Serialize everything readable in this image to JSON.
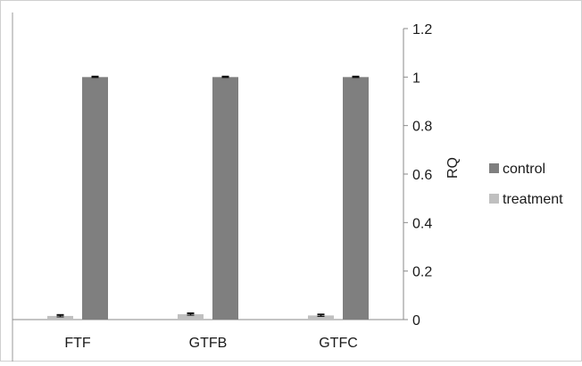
{
  "chart_data": {
    "type": "bar",
    "categories": [
      "FTF",
      "GTFB",
      "GTFC"
    ],
    "series": [
      {
        "name": "treatment",
        "values": [
          0.015,
          0.022,
          0.017
        ],
        "errors": [
          0.004,
          0.004,
          0.004
        ],
        "color": "#c0c0c0"
      },
      {
        "name": "control",
        "values": [
          1.0,
          1.0,
          1.0
        ],
        "errors": [
          0.002,
          0.002,
          0.002
        ],
        "color": "#7f7f7f"
      }
    ],
    "ylabel": "RQ",
    "ylim": [
      0,
      1.2
    ],
    "yticks": [
      "0",
      "0.2",
      "0.4",
      "0.6",
      "0.8",
      "1",
      "1.2"
    ],
    "y_axis_side": "right",
    "grid": false,
    "legend_position": "right",
    "legend": [
      "control",
      "treatment"
    ]
  }
}
